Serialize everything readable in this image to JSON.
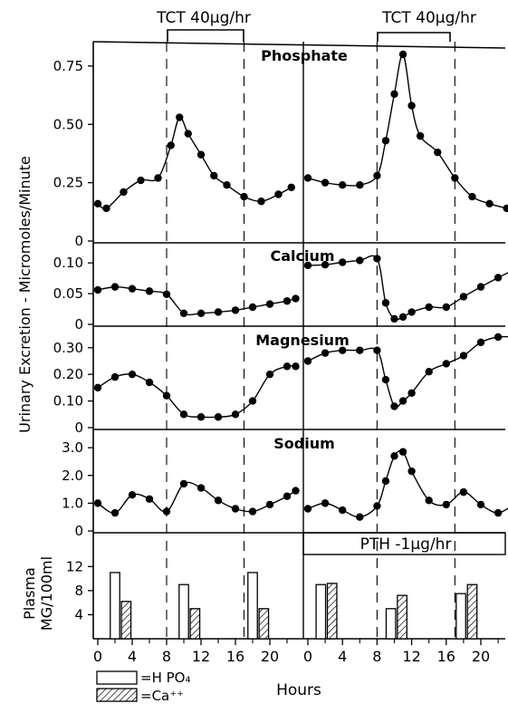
{
  "figure": {
    "top_labels": [
      "TCT 40μg/hr",
      "TCT 40μg/hr"
    ],
    "y_label": "Urinary Excretion - Micromoles/Minute",
    "plasma_label_line1": "Plasma",
    "plasma_label_line2": "MG/100ml",
    "pth_label": "PTH -1μg/hr",
    "x_label": "Hours",
    "legend": [
      {
        "key": "hpo4",
        "label": "=H PO₄"
      },
      {
        "key": "ca",
        "label": "=Ca⁺⁺"
      }
    ]
  },
  "chart_data": [
    {
      "type": "line",
      "title": "Phosphate",
      "ylim": [
        0,
        0.8
      ],
      "yticks": [
        0,
        0.25,
        0.5,
        0.75
      ],
      "ytick_labels": [
        "0",
        "0.25",
        "0.50",
        "0.75"
      ],
      "series": [
        {
          "x": [
            0,
            1,
            3,
            5,
            7,
            8.5,
            9.5,
            10.5,
            12,
            13.5,
            15,
            17,
            19,
            21,
            22.5
          ],
          "y": [
            0.16,
            0.14,
            0.21,
            0.26,
            0.27,
            0.41,
            0.53,
            0.46,
            0.37,
            0.28,
            0.24,
            0.19,
            0.17,
            0.2,
            0.23
          ]
        },
        {
          "x": [
            0,
            2,
            4,
            6,
            8,
            9,
            10,
            11,
            12,
            13,
            15,
            17,
            19,
            21,
            23,
            24
          ],
          "y": [
            0.27,
            0.25,
            0.24,
            0.24,
            0.28,
            0.43,
            0.63,
            0.8,
            0.58,
            0.45,
            0.38,
            0.27,
            0.19,
            0.16,
            0.14,
            0.13
          ]
        }
      ]
    },
    {
      "type": "line",
      "title": "Calcium",
      "ylim": [
        0,
        0.115
      ],
      "yticks": [
        0,
        0.05,
        0.1
      ],
      "ytick_labels": [
        "0",
        "0.05",
        "0.10"
      ],
      "series": [
        {
          "x": [
            0,
            2,
            4,
            6,
            8,
            10,
            12,
            14,
            16,
            18,
            20,
            22,
            23
          ],
          "y": [
            0.056,
            0.061,
            0.058,
            0.054,
            0.049,
            0.018,
            0.018,
            0.02,
            0.023,
            0.028,
            0.033,
            0.038,
            0.042
          ]
        },
        {
          "x": [
            0,
            2,
            4,
            6,
            8,
            9,
            10,
            11,
            12,
            14,
            16,
            18,
            20,
            22,
            24
          ],
          "y": [
            0.096,
            0.097,
            0.101,
            0.104,
            0.107,
            0.035,
            0.009,
            0.012,
            0.02,
            0.028,
            0.028,
            0.045,
            0.061,
            0.076,
            0.09
          ]
        }
      ]
    },
    {
      "type": "line",
      "title": "Magnesium",
      "ylim": [
        0,
        0.34
      ],
      "yticks": [
        0,
        0.1,
        0.2,
        0.3
      ],
      "ytick_labels": [
        "0",
        "0.10",
        "0.20",
        "0.30"
      ],
      "series": [
        {
          "x": [
            0,
            2,
            4,
            6,
            8,
            10,
            12,
            14,
            16,
            18,
            20,
            22,
            23
          ],
          "y": [
            0.15,
            0.19,
            0.2,
            0.17,
            0.12,
            0.05,
            0.04,
            0.04,
            0.05,
            0.1,
            0.2,
            0.23,
            0.23
          ]
        },
        {
          "x": [
            0,
            2,
            4,
            6,
            8,
            9,
            10,
            11,
            12,
            14,
            16,
            18,
            20,
            22,
            24
          ],
          "y": [
            0.25,
            0.28,
            0.29,
            0.29,
            0.29,
            0.18,
            0.08,
            0.1,
            0.13,
            0.21,
            0.24,
            0.27,
            0.32,
            0.34,
            0.34
          ]
        }
      ]
    },
    {
      "type": "line",
      "title": "Sodium",
      "ylim": [
        0,
        3.2
      ],
      "yticks": [
        0,
        1.0,
        2.0,
        3.0
      ],
      "ytick_labels": [
        "0",
        "1.0",
        "2.0",
        "3.0"
      ],
      "series": [
        {
          "x": [
            0,
            2,
            4,
            6,
            8,
            10,
            12,
            14,
            16,
            18,
            20,
            22,
            23
          ],
          "y": [
            1.0,
            0.65,
            1.3,
            1.15,
            0.7,
            1.7,
            1.55,
            1.1,
            0.8,
            0.7,
            0.95,
            1.25,
            1.45
          ]
        },
        {
          "x": [
            0,
            2,
            4,
            6,
            8,
            9,
            10,
            11,
            12,
            14,
            16,
            18,
            20,
            22,
            24
          ],
          "y": [
            0.8,
            1.0,
            0.75,
            0.5,
            0.9,
            1.8,
            2.7,
            2.85,
            2.15,
            1.1,
            0.95,
            1.4,
            0.95,
            0.65,
            1.0
          ]
        }
      ]
    },
    {
      "type": "bar",
      "title": "",
      "ylim": [
        0,
        14
      ],
      "yticks": [
        4,
        8,
        12
      ],
      "ytick_labels": [
        "4",
        "8",
        "12"
      ],
      "bar_width_hours": 1.1,
      "series": [
        {
          "key": "hpo4",
          "name": "H PO₄",
          "x": [
            2,
            10,
            18
          ],
          "values": [
            11,
            9,
            11
          ]
        },
        {
          "key": "ca",
          "name": "Ca⁺⁺",
          "x": [
            3.3,
            11.3,
            19.3
          ],
          "values": [
            6.2,
            5,
            5
          ]
        },
        {
          "key": "hpo4",
          "name": "H PO₄",
          "x": [
            1.5,
            9.6,
            17.7
          ],
          "values": [
            9,
            5,
            7.5
          ]
        },
        {
          "key": "ca",
          "name": "Ca⁺⁺",
          "x": [
            2.8,
            10.9,
            19
          ],
          "values": [
            9.2,
            7.2,
            9
          ]
        }
      ]
    }
  ],
  "x_axis": {
    "ticks_left": [
      0,
      4,
      8,
      12,
      16,
      20
    ],
    "ticks_right": [
      0,
      4,
      8,
      12,
      16,
      20
    ],
    "tick_labels_left": [
      "0",
      "4",
      "8",
      "12",
      "16",
      "20"
    ],
    "tick_labels_right": [
      "0",
      "4",
      "8",
      "12",
      "16",
      "20"
    ],
    "dashed_hours": [
      8,
      17
    ]
  }
}
